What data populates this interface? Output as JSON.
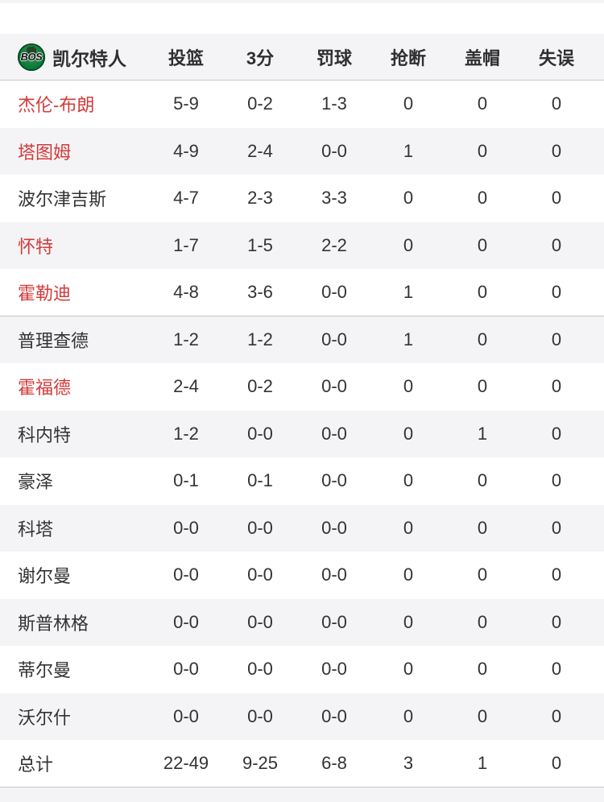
{
  "table": {
    "team": {
      "name": "凯尔特人",
      "logo_text": "BOS"
    },
    "columns": [
      "投篮",
      "3分",
      "罚球",
      "抢断",
      "盖帽",
      "失误"
    ],
    "rows": [
      {
        "name": "杰伦-布朗",
        "highlight": true,
        "stats": [
          "5-9",
          "0-2",
          "1-3",
          "0",
          "0",
          "0"
        ]
      },
      {
        "name": "塔图姆",
        "highlight": true,
        "stats": [
          "4-9",
          "2-4",
          "0-0",
          "1",
          "0",
          "0"
        ]
      },
      {
        "name": "波尔津吉斯",
        "highlight": false,
        "stats": [
          "4-7",
          "2-3",
          "3-3",
          "0",
          "0",
          "0"
        ]
      },
      {
        "name": "怀特",
        "highlight": true,
        "stats": [
          "1-7",
          "1-5",
          "2-2",
          "0",
          "0",
          "0"
        ]
      },
      {
        "name": "霍勒迪",
        "highlight": true,
        "stats": [
          "4-8",
          "3-6",
          "0-0",
          "1",
          "0",
          "0"
        ]
      },
      {
        "name": "普理查德",
        "highlight": false,
        "stats": [
          "1-2",
          "1-2",
          "0-0",
          "1",
          "0",
          "0"
        ]
      },
      {
        "name": "霍福德",
        "highlight": true,
        "stats": [
          "2-4",
          "0-2",
          "0-0",
          "0",
          "0",
          "0"
        ]
      },
      {
        "name": "科内特",
        "highlight": false,
        "stats": [
          "1-2",
          "0-0",
          "0-0",
          "0",
          "1",
          "0"
        ]
      },
      {
        "name": "豪泽",
        "highlight": false,
        "stats": [
          "0-1",
          "0-1",
          "0-0",
          "0",
          "0",
          "0"
        ]
      },
      {
        "name": "科塔",
        "highlight": false,
        "stats": [
          "0-0",
          "0-0",
          "0-0",
          "0",
          "0",
          "0"
        ]
      },
      {
        "name": "谢尔曼",
        "highlight": false,
        "stats": [
          "0-0",
          "0-0",
          "0-0",
          "0",
          "0",
          "0"
        ]
      },
      {
        "name": "斯普林格",
        "highlight": false,
        "stats": [
          "0-0",
          "0-0",
          "0-0",
          "0",
          "0",
          "0"
        ]
      },
      {
        "name": "蒂尔曼",
        "highlight": false,
        "stats": [
          "0-0",
          "0-0",
          "0-0",
          "0",
          "0",
          "0"
        ]
      },
      {
        "name": "沃尔什",
        "highlight": false,
        "stats": [
          "0-0",
          "0-0",
          "0-0",
          "0",
          "0",
          "0"
        ]
      }
    ],
    "total": {
      "label": "总计",
      "stats": [
        "22-49",
        "9-25",
        "6-8",
        "3",
        "1",
        "0"
      ]
    },
    "layout": {
      "starters_count": 5
    },
    "colors": {
      "highlight_red": "#d33b3a",
      "row_alt_bg": "#f4f4f6",
      "divider": "#c7c7cc",
      "text": "#333333",
      "logo_green": "#007A33"
    }
  }
}
